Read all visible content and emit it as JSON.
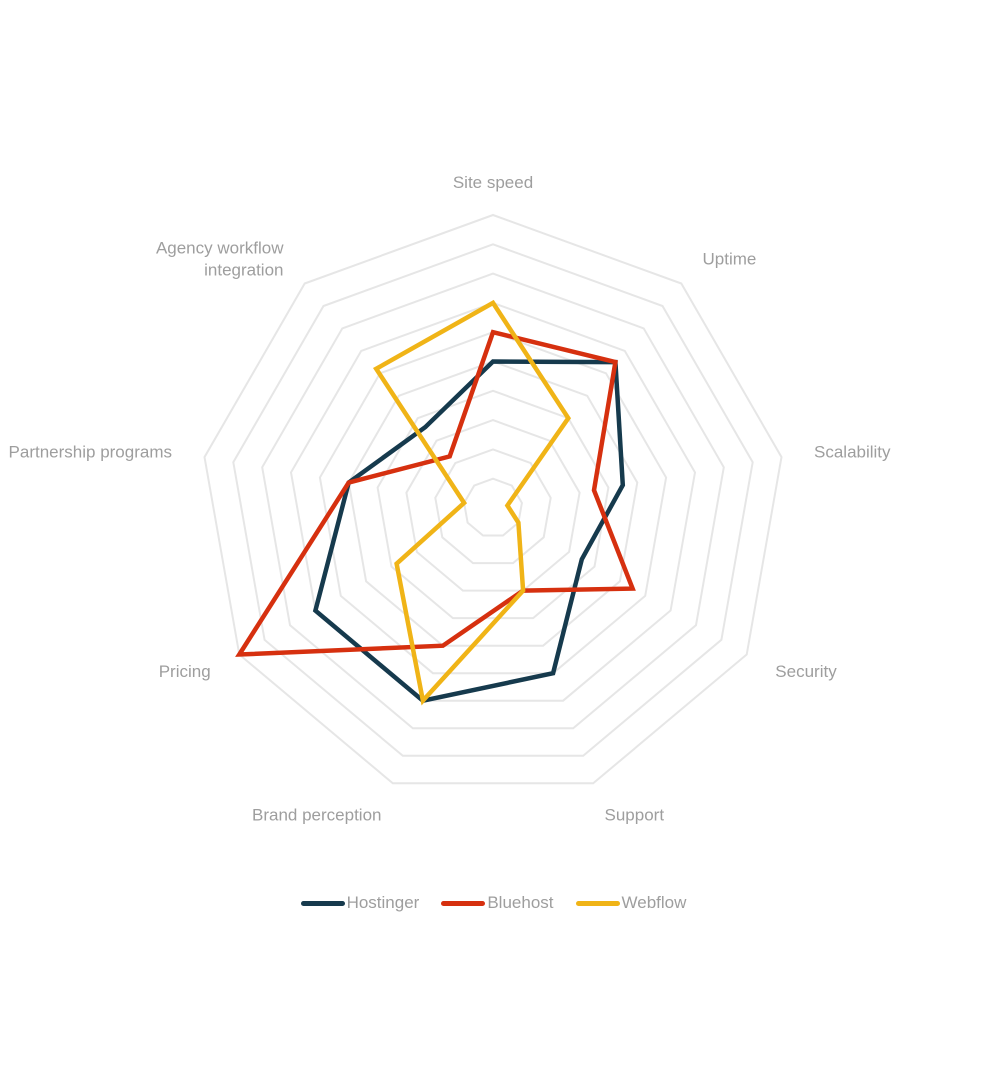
{
  "chart_data": {
    "type": "radar",
    "axes": [
      "Site speed",
      "Uptime",
      "Scalability",
      "Security",
      "Support",
      "Brand perception",
      "Pricing",
      "Partnership programs",
      "Agency workflow integration"
    ],
    "axis_label_lines": [
      [
        "Site speed"
      ],
      [
        "Uptime"
      ],
      [
        "Scalability"
      ],
      [
        "Security"
      ],
      [
        "Support"
      ],
      [
        "Brand perception"
      ],
      [
        "Pricing"
      ],
      [
        "Partnership programs"
      ],
      [
        "Agency workflow",
        "integration"
      ]
    ],
    "rmax": 10,
    "grid_levels": [
      1,
      2,
      3,
      4,
      5,
      6,
      7,
      8,
      9,
      10
    ],
    "series": [
      {
        "name": "Hostinger",
        "color": "#163a4d",
        "values": [
          5,
          6.5,
          4.5,
          3.5,
          6,
          7,
          7,
          5,
          3.6
        ]
      },
      {
        "name": "Bluehost",
        "color": "#d6300f",
        "values": [
          6,
          6.5,
          3.5,
          5.5,
          3,
          5,
          10,
          5,
          2.3
        ]
      },
      {
        "name": "Webflow",
        "color": "#f0b417",
        "values": [
          7,
          4,
          0.5,
          1,
          3,
          7,
          3.8,
          1,
          6.2
        ]
      }
    ],
    "legend_position": "bottom"
  }
}
